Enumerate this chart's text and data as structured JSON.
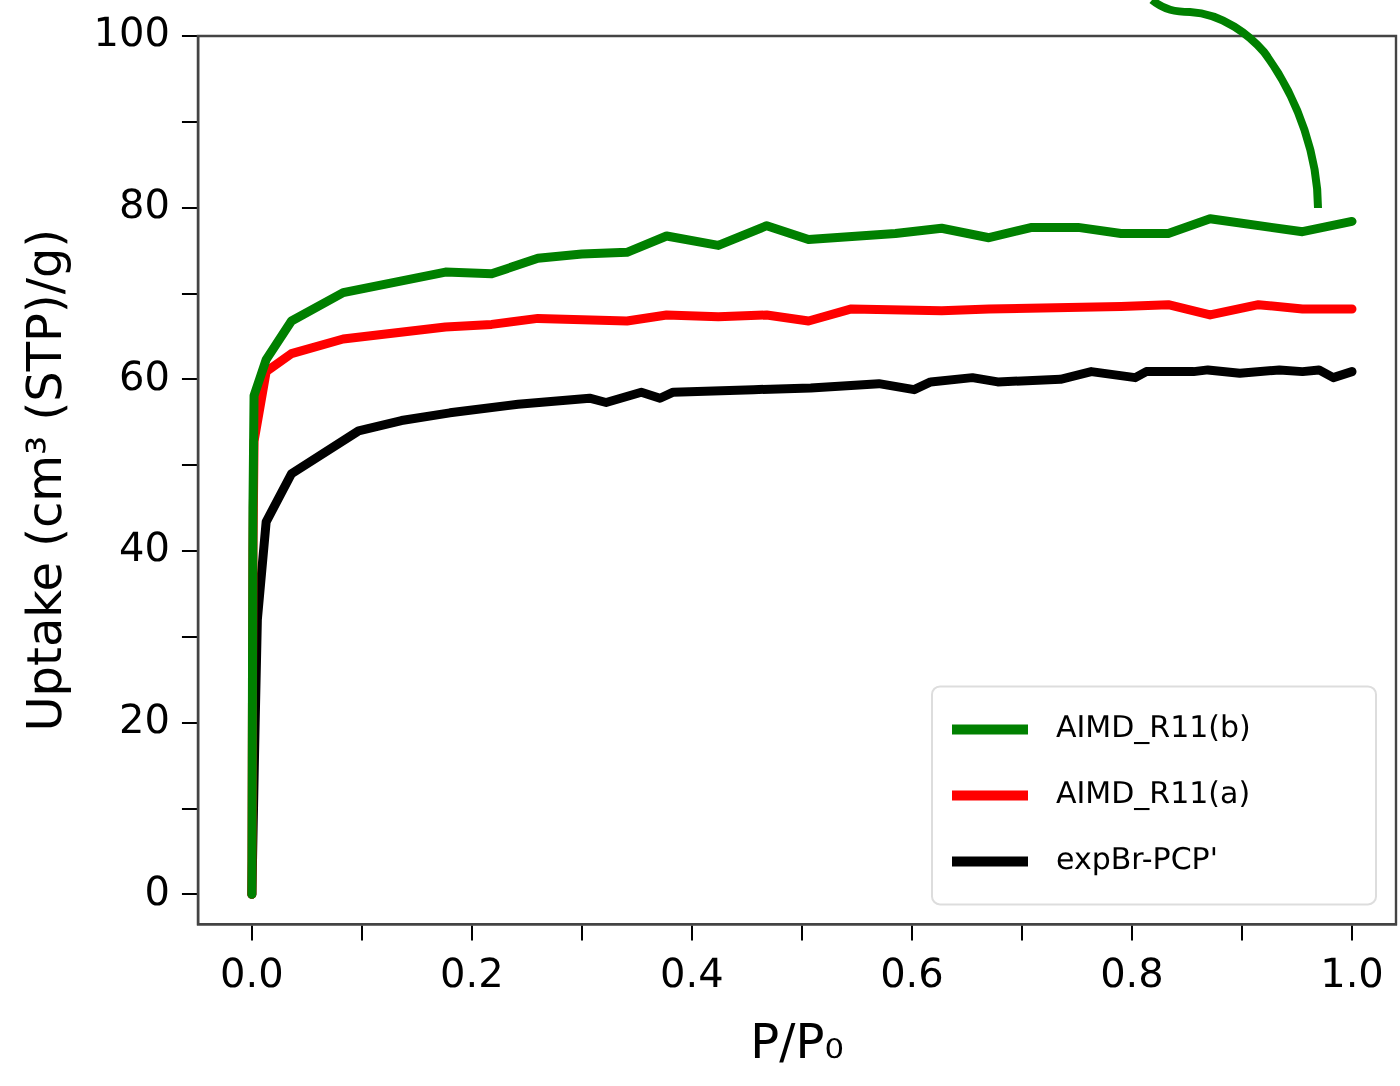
{
  "chart_data": {
    "type": "line",
    "xlabel": "P/P₀",
    "ylabel": "Uptake (cm³ (STP)/g)",
    "xlim": [
      -0.049,
      1.04
    ],
    "ylim": [
      -3.5,
      100
    ],
    "xticks": [
      {
        "value": 0,
        "label": "0.0"
      },
      {
        "value": 0.1,
        "label": null
      },
      0.2,
      {
        "value": 0.3,
        "label": null
      },
      0.4,
      {
        "value": 0.5,
        "label": null
      },
      0.6,
      {
        "value": 0.7,
        "label": null
      },
      0.8,
      {
        "value": 0.9,
        "label": null
      },
      {
        "value": 1,
        "label": "1.0"
      }
    ],
    "yticks": [
      0,
      {
        "value": 10,
        "label": null
      },
      20,
      {
        "value": 30,
        "label": null
      },
      40,
      {
        "value": 50,
        "label": null
      },
      60,
      {
        "value": 70,
        "label": null
      },
      80,
      {
        "value": 90,
        "label": null
      },
      100
    ],
    "legend": "bottom right",
    "grid": false,
    "marker": "none",
    "line_style": "solid",
    "series": [
      {
        "name": "AIMD_R11(b)",
        "color": "#008000",
        "x": [
          0,
          0.001,
          0.002,
          0.013,
          0.036,
          0.083,
          0.176,
          0.218,
          0.26,
          0.3,
          0.341,
          0.377,
          0.424,
          0.468,
          0.506,
          0.585,
          0.627,
          0.67,
          0.709,
          0.751,
          0.79,
          0.833,
          0.871,
          0.955,
          1.0
        ],
        "values": [
          0,
          45,
          58.1,
          62.3,
          66.8,
          70.1,
          72.5,
          72.3,
          74.1,
          74.6,
          74.8,
          76.7,
          75.6,
          77.9,
          76.3,
          77.0,
          77.6,
          76.5,
          77.7,
          77.7,
          77.0,
          77.0,
          78.7,
          77.2,
          78.4
        ]
      },
      {
        "name": "AIMD_R11(a)",
        "color": "#ff0000",
        "x": [
          0,
          0.001,
          0.002,
          0.013,
          0.036,
          0.083,
          0.176,
          0.218,
          0.26,
          0.341,
          0.377,
          0.424,
          0.468,
          0.506,
          0.545,
          0.627,
          0.67,
          0.79,
          0.833,
          0.871,
          0.915,
          0.955,
          1.0
        ],
        "values": [
          0,
          40,
          52.8,
          60.9,
          63.0,
          64.7,
          66.1,
          66.4,
          67.1,
          66.8,
          67.5,
          67.3,
          67.5,
          66.8,
          68.2,
          68.0,
          68.2,
          68.5,
          68.7,
          67.5,
          68.7,
          68.2,
          68.2
        ]
      },
      {
        "name": "expBr-PCP'",
        "color": "#000000",
        "x": [
          0,
          0.003,
          0.005,
          0.013,
          0.036,
          0.097,
          0.136,
          0.18,
          0.242,
          0.307,
          0.322,
          0.354,
          0.371,
          0.383,
          0.456,
          0.508,
          0.57,
          0.602,
          0.617,
          0.655,
          0.678,
          0.735,
          0.763,
          0.803,
          0.813,
          0.856,
          0.869,
          0.898,
          0.934,
          0.955,
          0.97,
          0.983,
          1.0
        ],
        "values": [
          0,
          20,
          32,
          43.4,
          49,
          54,
          55.2,
          56.1,
          57.1,
          57.8,
          57.3,
          58.5,
          57.8,
          58.5,
          58.8,
          59.0,
          59.5,
          58.8,
          59.7,
          60.2,
          59.7,
          60.0,
          60.9,
          60.2,
          60.9,
          60.9,
          61.1,
          60.7,
          61.1,
          60.9,
          61.1,
          60.2,
          60.9
        ]
      }
    ]
  }
}
